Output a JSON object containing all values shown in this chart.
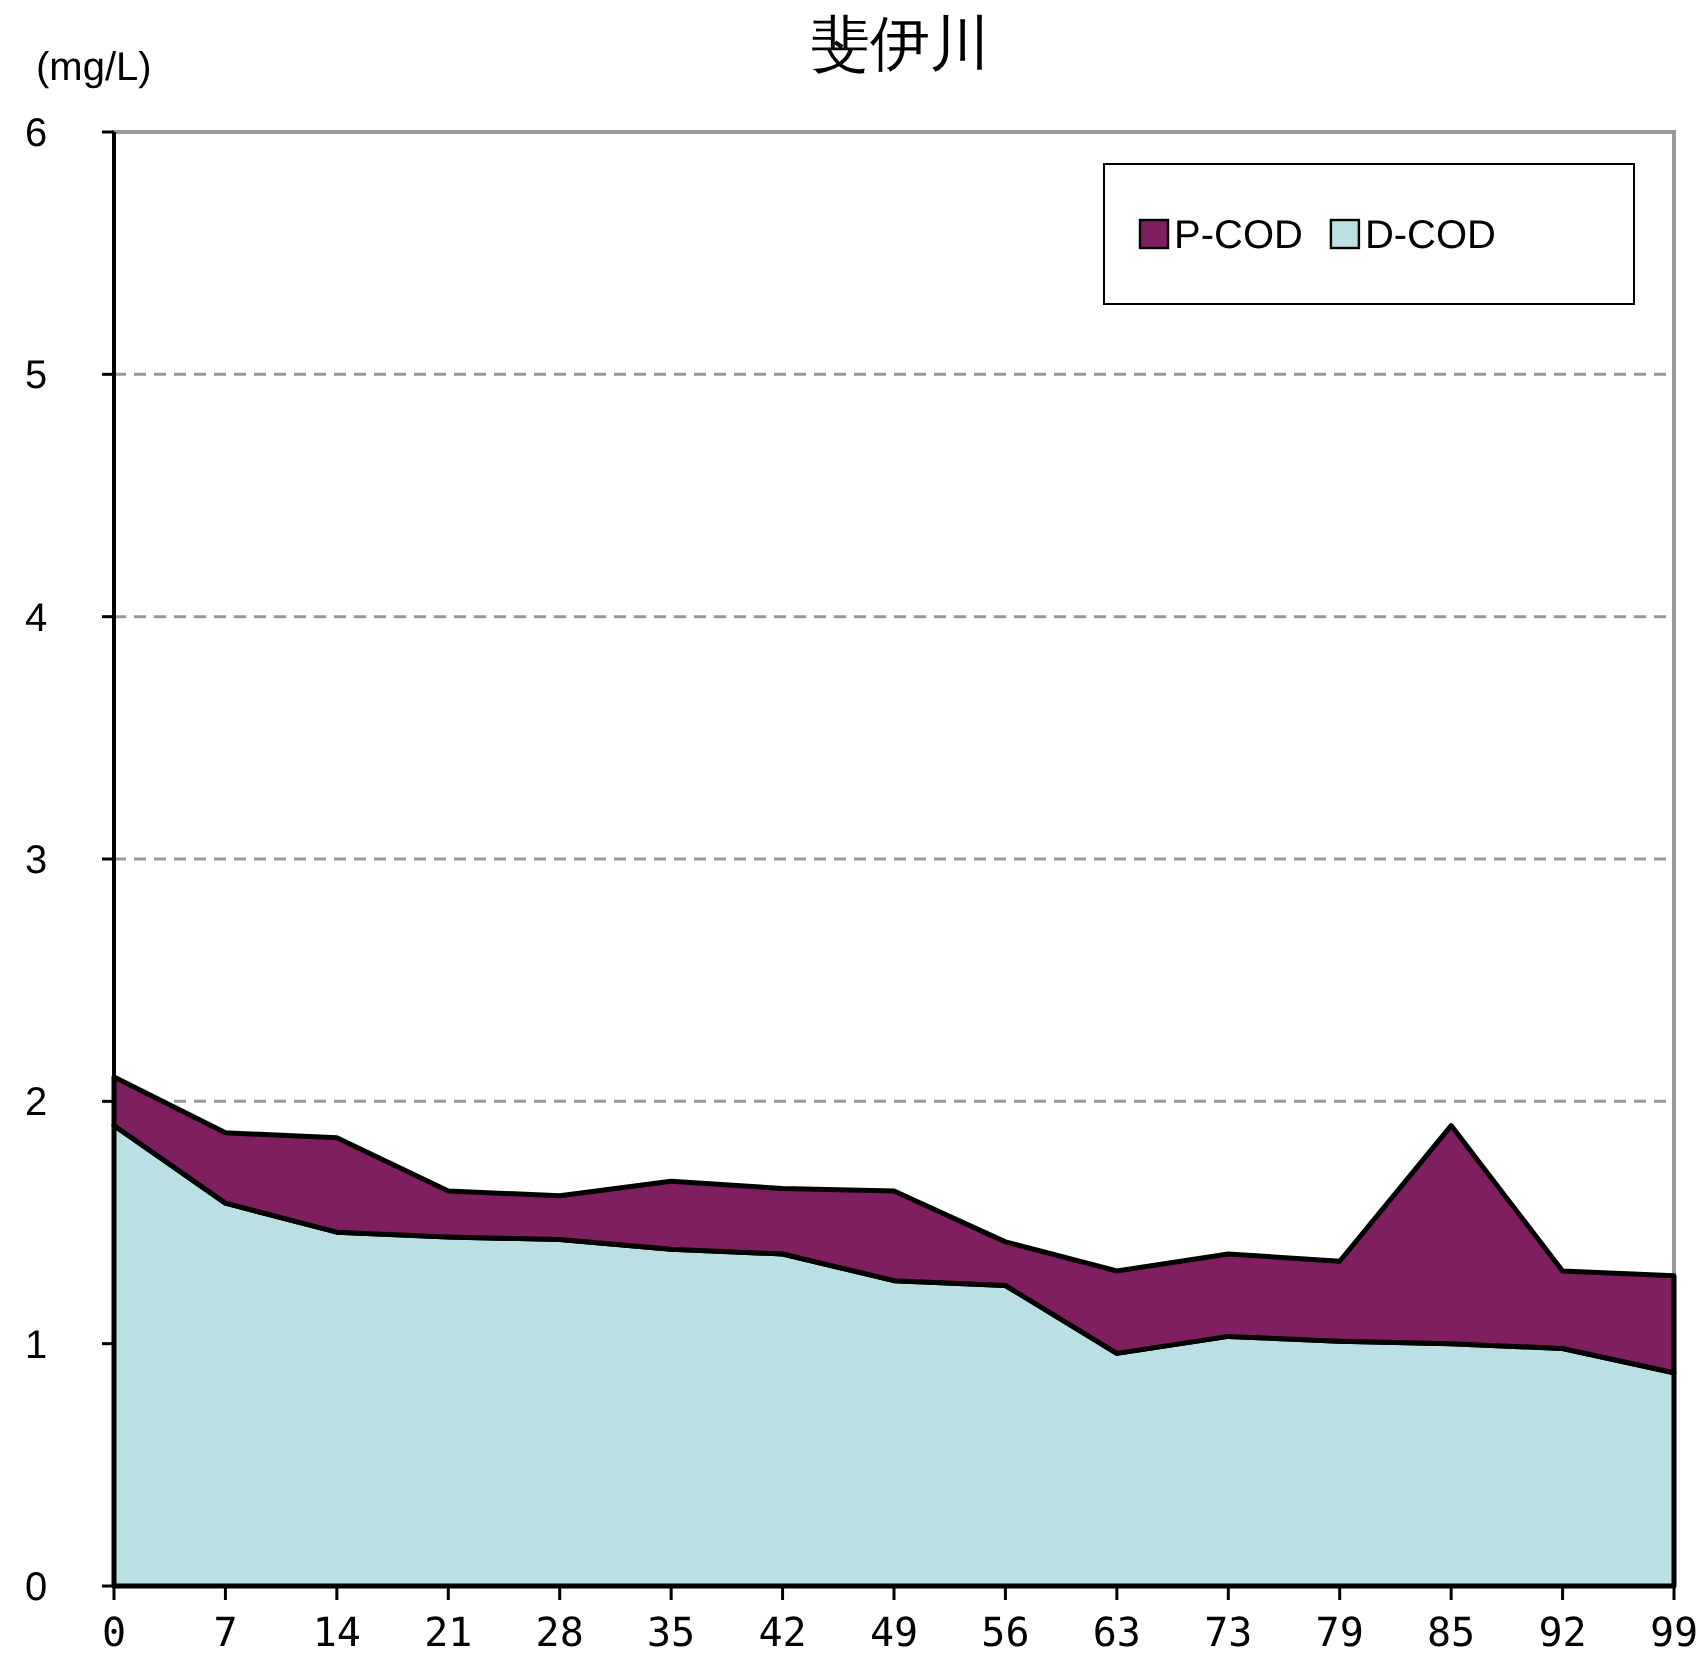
{
  "chart_data": {
    "type": "area",
    "title": "斐伊川",
    "ylabel": "(mg/L)",
    "stacked": true,
    "grid": "y",
    "legend": "top right",
    "categories": [
      "0",
      "7",
      "14",
      "21",
      "28",
      "35",
      "42",
      "49",
      "56",
      "63",
      "73",
      "79",
      "85",
      "92",
      "99"
    ],
    "series": [
      {
        "name": "D-COD",
        "color": "#bbe0e3",
        "values": [
          1.9,
          1.58,
          1.46,
          1.44,
          1.43,
          1.39,
          1.37,
          1.26,
          1.24,
          0.96,
          1.03,
          1.01,
          1.0,
          0.98,
          0.88
        ]
      },
      {
        "name": "P-COD",
        "color": "#7f1f5f",
        "values": [
          0.2,
          0.29,
          0.39,
          0.19,
          0.18,
          0.28,
          0.27,
          0.37,
          0.18,
          0.34,
          0.34,
          0.33,
          0.9,
          0.32,
          0.4
        ]
      }
    ],
    "ylim": [
      0,
      6
    ],
    "yticks": [
      0,
      1,
      2,
      3,
      4,
      5,
      6
    ]
  }
}
